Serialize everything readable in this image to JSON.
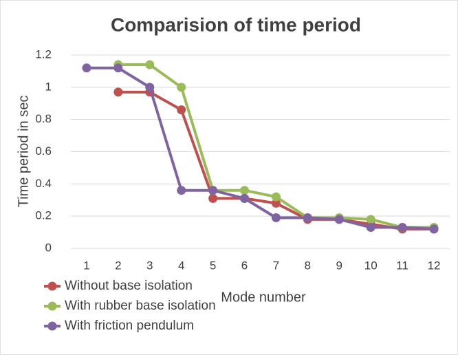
{
  "chart_data": {
    "type": "line",
    "title": "Comparision of time period",
    "x_label": "Mode number",
    "y_label": "Time period in sec",
    "categories": [
      1,
      2,
      3,
      4,
      5,
      6,
      7,
      8,
      9,
      10,
      11,
      12
    ],
    "series": [
      {
        "name": "Without base isolation",
        "color": "#c0504d",
        "values": [
          null,
          0.97,
          0.97,
          0.86,
          0.31,
          0.31,
          0.28,
          0.18,
          0.18,
          0.15,
          0.12,
          0.12
        ]
      },
      {
        "name": "With rubber base isolation",
        "color": "#9bbb59",
        "values": [
          null,
          1.14,
          1.14,
          1.0,
          0.36,
          0.36,
          0.32,
          0.19,
          0.19,
          0.18,
          0.13,
          0.13
        ]
      },
      {
        "name": "With friction pendulum",
        "color": "#8064a2",
        "values": [
          1.12,
          1.12,
          1.0,
          0.36,
          0.36,
          0.31,
          0.19,
          0.19,
          0.18,
          0.13,
          0.13,
          0.12
        ]
      }
    ],
    "ylim": [
      0,
      1.2
    ],
    "yticks": [
      0,
      0.2,
      0.4,
      0.6,
      0.8,
      1,
      1.2
    ],
    "grid": true,
    "legend": "bottom-left"
  }
}
